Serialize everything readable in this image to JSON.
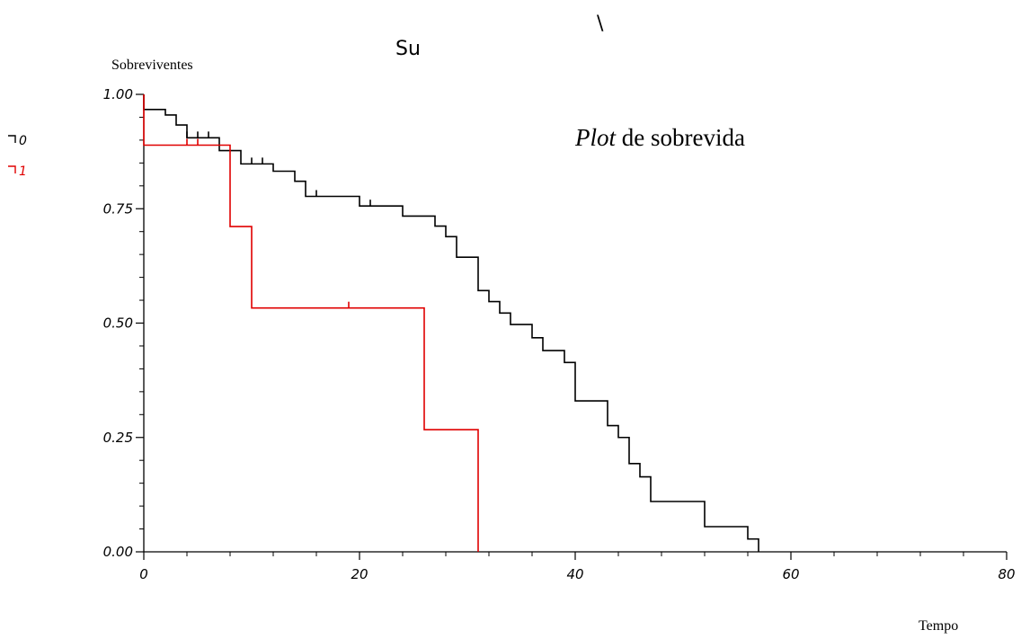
{
  "chart_data": {
    "type": "line",
    "step": true,
    "title": "Su",
    "title_stroke": "\\",
    "annotation": {
      "italic": "Plot",
      "rest": " de sobrevida"
    },
    "xlabel": "Tempo",
    "ylabel": "Sobreviventes",
    "xlim": [
      0,
      80
    ],
    "ylim": [
      0,
      1
    ],
    "x_ticks": [
      0,
      20,
      40,
      60,
      80
    ],
    "x_tick_labels": [
      "0",
      "20",
      "40",
      "60",
      "80"
    ],
    "x_minor_step": 4,
    "y_ticks": [
      0,
      0.25,
      0.5,
      0.75,
      1
    ],
    "y_tick_labels": [
      "0.00",
      "0.25",
      "0.50",
      "0.75",
      "1.00"
    ],
    "y_minor_step": 0.05,
    "grid": false,
    "legend_position": "left",
    "series": [
      {
        "name": "0",
        "color": "#000000",
        "points": [
          [
            0,
            1.0
          ],
          [
            0,
            0.967
          ],
          [
            2,
            0.955
          ],
          [
            3,
            0.933
          ],
          [
            4,
            0.905
          ],
          [
            7,
            0.877
          ],
          [
            9,
            0.848
          ],
          [
            12,
            0.832
          ],
          [
            14,
            0.81
          ],
          [
            15,
            0.777
          ],
          [
            20,
            0.756
          ],
          [
            24,
            0.734
          ],
          [
            27,
            0.712
          ],
          [
            28,
            0.689
          ],
          [
            29,
            0.644
          ],
          [
            31,
            0.571
          ],
          [
            32,
            0.547
          ],
          [
            33,
            0.522
          ],
          [
            34,
            0.497
          ],
          [
            36,
            0.468
          ],
          [
            37,
            0.44
          ],
          [
            39,
            0.414
          ],
          [
            40,
            0.33
          ],
          [
            43,
            0.276
          ],
          [
            44,
            0.25
          ],
          [
            45,
            0.193
          ],
          [
            46,
            0.164
          ],
          [
            47,
            0.11
          ],
          [
            52,
            0.055
          ],
          [
            56,
            0.028
          ],
          [
            57,
            0.0
          ]
        ],
        "censored": [
          4,
          5,
          6,
          10,
          11,
          16,
          21
        ]
      },
      {
        "name": "1",
        "color": "#e00000",
        "points": [
          [
            0,
            1.0
          ],
          [
            0,
            0.889
          ],
          [
            8,
            0.711
          ],
          [
            10,
            0.533
          ],
          [
            26,
            0.267
          ],
          [
            31,
            0.0
          ]
        ],
        "censored": [
          4,
          5,
          19
        ]
      }
    ]
  }
}
